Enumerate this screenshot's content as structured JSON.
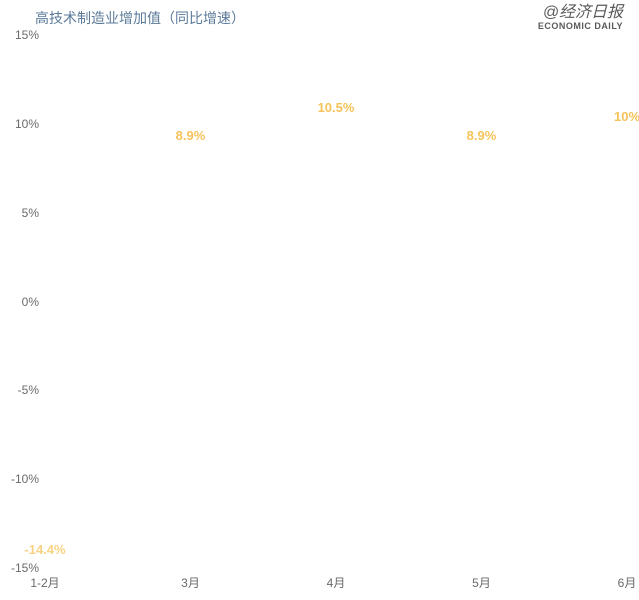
{
  "chart": {
    "type": "line",
    "title": "高技术制造业增加值（同比增速）",
    "title_color": "#5b7a99",
    "title_fontsize": 14,
    "background_color": "#ffffff",
    "plot_background_color": "#ffffff",
    "gridline_color": "#ffffff",
    "axis_label_color": "#6a6a6a",
    "axis_label_fontsize": 12,
    "data_label_color": "#f6c35a",
    "data_label_fontsize": 13,
    "ylim": [
      -15,
      15
    ],
    "ytick_step": 5,
    "y_ticks": [
      {
        "value": 15,
        "label": "15%"
      },
      {
        "value": 10,
        "label": "10%"
      },
      {
        "value": 5,
        "label": "5%"
      },
      {
        "value": 0,
        "label": "0%"
      },
      {
        "value": -5,
        "label": "-5%"
      },
      {
        "value": -10,
        "label": "-10%"
      },
      {
        "value": -15,
        "label": "-15%"
      }
    ],
    "x_categories": [
      "1-2月",
      "3月",
      "4月",
      "5月",
      "6月"
    ],
    "series": [
      {
        "name": "高技术制造业增加值同比增速",
        "color": "#f6c35a",
        "data_labels": [
          {
            "x_index": 0,
            "value": -14.4,
            "label": "-14.4%",
            "visible_partial": true
          },
          {
            "x_index": 1,
            "value": 8.9,
            "label": "8.9%"
          },
          {
            "x_index": 2,
            "value": 10.5,
            "label": "10.5%"
          },
          {
            "x_index": 3,
            "value": 8.9,
            "label": "8.9%"
          },
          {
            "x_index": 4,
            "value": 10.0,
            "label": "10%"
          }
        ]
      }
    ]
  },
  "watermark": {
    "cn": "@经济日报",
    "en": "ECONOMIC DAILY"
  }
}
